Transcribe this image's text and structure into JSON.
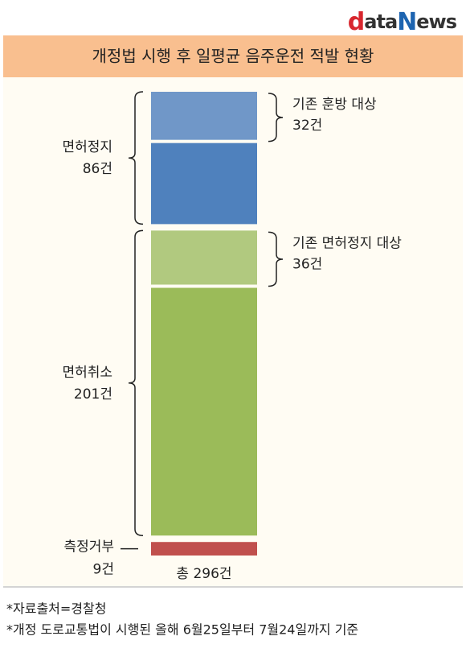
{
  "logo": [
    "d",
    "ata",
    "N",
    "ews"
  ],
  "chart_data": {
    "type": "stacked-bar",
    "title": "개정법 시행 후 일평균 음주운전 적발 현황",
    "series": [
      {
        "name": "기존 훈방 대상",
        "values": [
          32
        ],
        "value_labels": [
          "32건"
        ],
        "color": "#7097c8"
      },
      {
        "values": [
          54
        ],
        "color": "#4f81bd"
      },
      {
        "name": "기존 면허정지 대상",
        "values": [
          36
        ],
        "value_labels": [
          "36건"
        ],
        "color": "#b1c97f"
      },
      {
        "values": [
          165
        ],
        "color": "#9bbb59"
      },
      {
        "values": [
          9
        ],
        "color": "#c0504d"
      }
    ],
    "groups": [
      {
        "name": "면허정지",
        "value": 86,
        "value_label": "86건"
      },
      {
        "name": "면허취소",
        "value": 201,
        "value_label": "201건"
      },
      {
        "name": "측정거부",
        "value": 9,
        "value_label": "9건"
      }
    ],
    "total": {
      "value": 296,
      "label": "총 296건"
    }
  },
  "notes": [
    "*자료출처=경찰청",
    "*개정 도로교통법이 시행된 올해 6월25일부터 7월24일까지 기준"
  ]
}
